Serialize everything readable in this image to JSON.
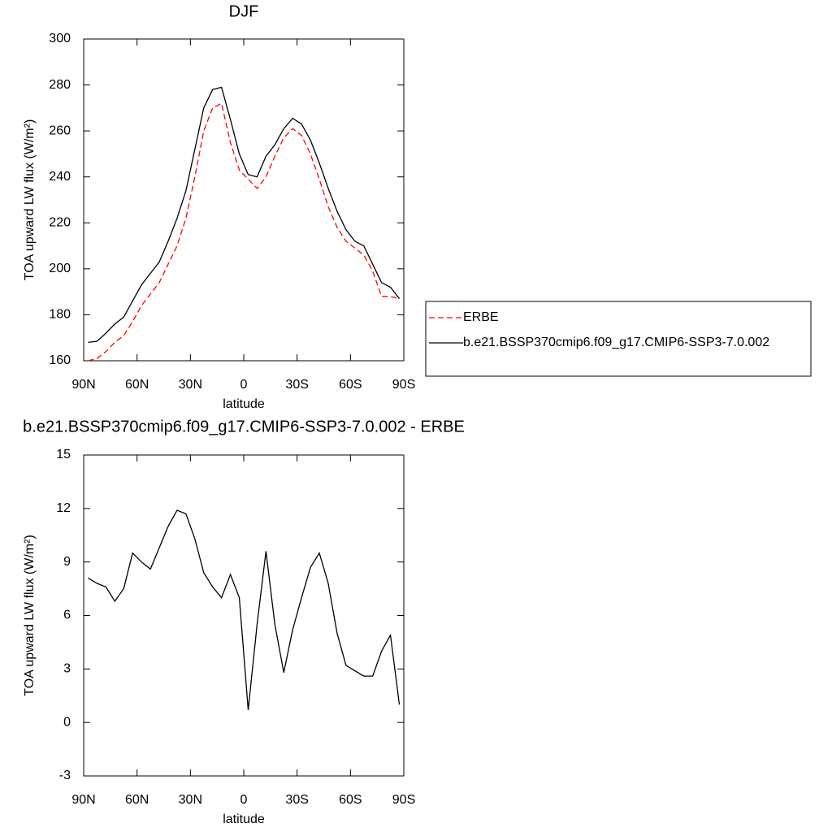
{
  "chart_data": [
    {
      "type": "line",
      "title": "DJF",
      "xlabel": "latitude",
      "ylabel": "TOA upward LW flux (W/m²)",
      "x": [
        87.5,
        82.5,
        77.5,
        72.5,
        67.5,
        62.5,
        57.5,
        52.5,
        47.5,
        42.5,
        37.5,
        32.5,
        27.5,
        22.5,
        17.5,
        12.5,
        7.5,
        2.5,
        -2.5,
        -7.5,
        -12.5,
        -17.5,
        -22.5,
        -27.5,
        -32.5,
        -37.5,
        -42.5,
        -47.5,
        -52.5,
        -57.5,
        -62.5,
        -67.5,
        -72.5,
        -77.5,
        -82.5,
        -87.5
      ],
      "series": [
        {
          "name": "ERBE",
          "color": "#ff0000",
          "dashed": true,
          "values": [
            160,
            161,
            164,
            168,
            171,
            177,
            184,
            189,
            194,
            202,
            210,
            222,
            240,
            260,
            270,
            272,
            255,
            243,
            239,
            235,
            240,
            249,
            257,
            261,
            258,
            250,
            239,
            227,
            218,
            212,
            209,
            206,
            199,
            188,
            188,
            187
          ]
        },
        {
          "name": "b.e21.BSSP370cmip6.f09_g17.CMIP6-SSP3-7.0.002",
          "color": "#000000",
          "dashed": false,
          "values": [
            168,
            168.5,
            172,
            176,
            179,
            186,
            193,
            198,
            203,
            212,
            222,
            234,
            252,
            270,
            278,
            279,
            265,
            250,
            241,
            240,
            249,
            254,
            261,
            265.5,
            263,
            256,
            246,
            235,
            225,
            217,
            212,
            210,
            202,
            194,
            192,
            187
          ]
        }
      ],
      "xlim": [
        90,
        -90
      ],
      "ylim": [
        160,
        300
      ],
      "xticks": [
        {
          "value": 90,
          "label": "90N"
        },
        {
          "value": 60,
          "label": "60N"
        },
        {
          "value": 30,
          "label": "30N"
        },
        0,
        {
          "value": -30,
          "label": "30S"
        },
        {
          "value": -60,
          "label": "60S"
        },
        {
          "value": -90,
          "label": "90S"
        }
      ],
      "yticks": [
        160,
        180,
        200,
        220,
        240,
        260,
        280,
        300
      ],
      "legend": "right"
    },
    {
      "type": "line",
      "title": "b.e21.BSSP370cmip6.f09_g17.CMIP6-SSP3-7.0.002 - ERBE",
      "xlabel": "latitude",
      "ylabel": "TOA upward LW flux (W/m²)",
      "x": [
        87.5,
        82.5,
        77.5,
        72.5,
        67.5,
        62.5,
        57.5,
        52.5,
        47.5,
        42.5,
        37.5,
        32.5,
        27.5,
        22.5,
        17.5,
        12.5,
        7.5,
        2.5,
        -2.5,
        -7.5,
        -12.5,
        -17.5,
        -22.5,
        -27.5,
        -32.5,
        -37.5,
        -42.5,
        -47.5,
        -52.5,
        -57.5,
        -62.5,
        -67.5,
        -72.5,
        -77.5,
        -82.5,
        -87.5
      ],
      "series": [
        {
          "color": "#000000",
          "dashed": false,
          "values": [
            8.1,
            7.8,
            7.6,
            6.8,
            7.5,
            9.5,
            9.0,
            8.6,
            9.8,
            11.0,
            11.9,
            11.7,
            10.3,
            8.4,
            7.6,
            7.0,
            8.3,
            7.0,
            0.7,
            5.5,
            9.6,
            5.5,
            2.8,
            5.2,
            7.0,
            8.7,
            9.5,
            7.8,
            5.0,
            3.2,
            2.9,
            2.6,
            2.6,
            4.0,
            4.9,
            1.0
          ]
        }
      ],
      "xlim": [
        90,
        -90
      ],
      "ylim": [
        -3,
        15
      ],
      "xticks": [
        {
          "value": 90,
          "label": "90N"
        },
        {
          "value": 60,
          "label": "60N"
        },
        {
          "value": 30,
          "label": "30N"
        },
        0,
        {
          "value": -30,
          "label": "30S"
        },
        {
          "value": -60,
          "label": "60S"
        },
        {
          "value": -90,
          "label": "90S"
        }
      ],
      "yticks": [
        -3,
        0,
        3,
        6,
        9,
        12,
        15
      ]
    }
  ]
}
